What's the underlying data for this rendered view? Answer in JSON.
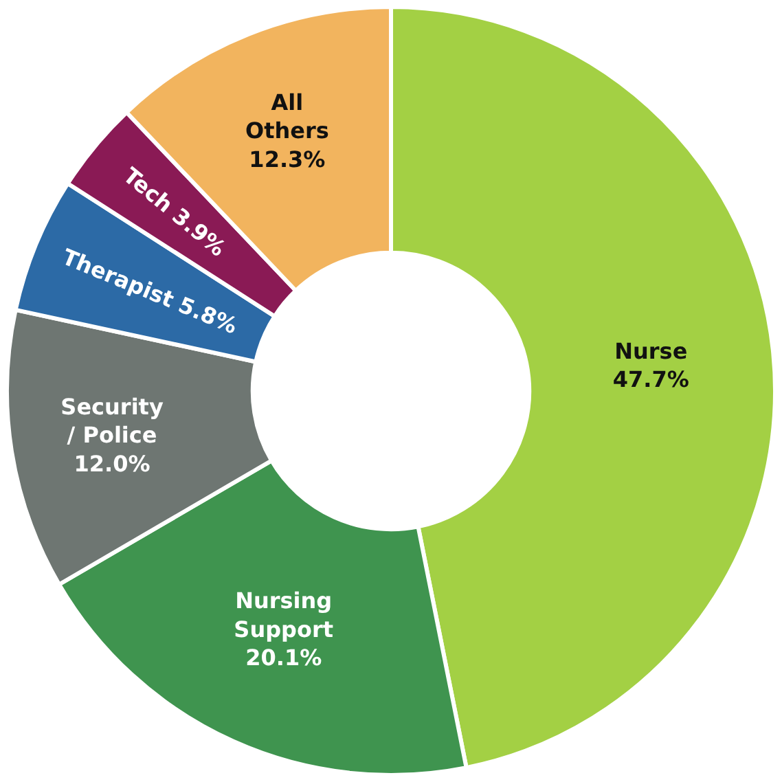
{
  "chart_data": {
    "type": "donut",
    "categories": [
      "Nurse",
      "Nursing Support",
      "Security / Police",
      "Therapist",
      "Tech",
      "All Others"
    ],
    "values": [
      47.7,
      20.1,
      12.0,
      5.8,
      3.9,
      12.3
    ],
    "value_labels": [
      "47.7%",
      "20.1%",
      "12.0%",
      "5.8%",
      "3.9%",
      "12.3%"
    ],
    "colors": [
      "#a3d044",
      "#3f944f",
      "#6e7672",
      "#2c6aa6",
      "#8a1a55",
      "#f2b45e"
    ],
    "legend": false
  }
}
